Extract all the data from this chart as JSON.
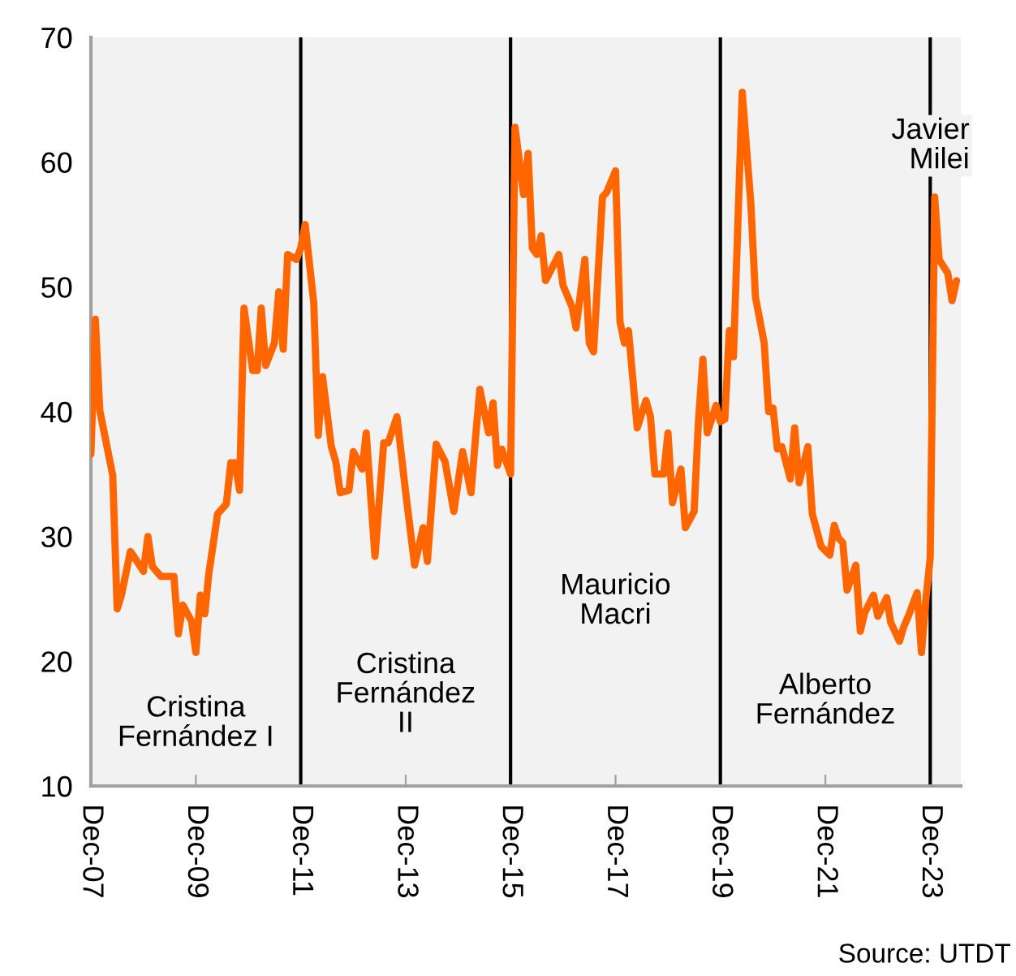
{
  "chart_data": {
    "type": "line",
    "x": [
      "2007-12",
      "2008-01",
      "2008-02",
      "2008-05",
      "2008-06",
      "2008-07",
      "2008-09",
      "2008-10",
      "2008-12",
      "2009-01",
      "2009-02",
      "2009-04",
      "2009-07",
      "2009-08",
      "2009-09",
      "2009-11",
      "2009-12",
      "2010-01",
      "2010-02",
      "2010-03",
      "2010-05",
      "2010-07",
      "2010-08",
      "2010-09",
      "2010-10",
      "2010-11",
      "2011-01",
      "2011-02",
      "2011-03",
      "2011-04",
      "2011-06",
      "2011-07",
      "2011-08",
      "2011-09",
      "2011-11",
      "2011-12",
      "2012-01",
      "2012-03",
      "2012-04",
      "2012-05",
      "2012-07",
      "2012-08",
      "2012-09",
      "2012-11",
      "2012-12",
      "2013-02",
      "2013-03",
      "2013-05",
      "2013-07",
      "2013-08",
      "2013-10",
      "2013-12",
      "2014-02",
      "2014-04",
      "2014-05",
      "2014-07",
      "2014-09",
      "2014-11",
      "2015-01",
      "2015-03",
      "2015-04",
      "2015-05",
      "2015-07",
      "2015-08",
      "2015-09",
      "2015-10",
      "2015-12",
      "2016-01",
      "2016-03",
      "2016-04",
      "2016-05",
      "2016-06",
      "2016-07",
      "2016-08",
      "2016-11",
      "2016-12",
      "2017-02",
      "2017-03",
      "2017-05",
      "2017-06",
      "2017-07",
      "2017-09",
      "2017-10",
      "2017-12",
      "2018-01",
      "2018-02",
      "2018-03",
      "2018-05",
      "2018-07",
      "2018-08",
      "2018-09",
      "2018-11",
      "2018-12",
      "2019-01",
      "2019-03",
      "2019-04",
      "2019-06",
      "2019-07",
      "2019-08",
      "2019-09",
      "2019-11",
      "2019-12",
      "2020-01",
      "2020-02",
      "2020-03",
      "2020-05",
      "2020-07",
      "2020-08",
      "2020-10",
      "2020-11",
      "2020-12",
      "2021-01",
      "2021-02",
      "2021-04",
      "2021-05",
      "2021-06",
      "2021-08",
      "2021-09",
      "2021-11",
      "2022-01",
      "2022-02",
      "2022-03",
      "2022-04",
      "2022-05",
      "2022-07",
      "2022-08",
      "2022-09",
      "2022-11",
      "2022-12",
      "2023-02",
      "2023-03",
      "2023-05",
      "2023-06",
      "2023-07",
      "2023-09",
      "2023-10",
      "2023-11",
      "2023-12",
      "2024-01",
      "2024-02",
      "2024-04",
      "2024-05",
      "2024-06"
    ],
    "series": [
      {
        "color": "#ff6600",
        "values": [
          36.6,
          47.4,
          40.1,
          34.9,
          24.2,
          25.3,
          28.8,
          28.3,
          27.2,
          30.0,
          27.6,
          26.8,
          26.8,
          22.2,
          24.5,
          23.2,
          20.7,
          25.3,
          23.8,
          27.0,
          31.8,
          32.6,
          35.9,
          35.9,
          33.7,
          48.3,
          43.3,
          43.3,
          48.3,
          43.7,
          45.5,
          49.6,
          45.0,
          52.6,
          52.2,
          53.1,
          55.0,
          48.7,
          38.1,
          42.8,
          37.2,
          36.0,
          33.5,
          33.7,
          36.8,
          35.4,
          38.3,
          28.4,
          37.5,
          37.5,
          39.6,
          33.5,
          27.7,
          30.7,
          28.0,
          37.4,
          36.0,
          32.0,
          36.8,
          33.5,
          37.9,
          41.8,
          38.3,
          40.7,
          35.7,
          37.0,
          35.0,
          62.8,
          57.4,
          60.7,
          53.1,
          52.6,
          54.1,
          50.5,
          52.6,
          50.1,
          48.4,
          46.7,
          52.2,
          45.5,
          44.8,
          57.2,
          57.6,
          59.3,
          47.2,
          45.5,
          46.5,
          38.7,
          40.9,
          39.6,
          35.0,
          35.0,
          38.3,
          32.7,
          35.4,
          30.7,
          32.0,
          39.2,
          44.2,
          38.3,
          40.5,
          39.2,
          39.4,
          46.5,
          44.4,
          65.6,
          56.5,
          49.2,
          45.5,
          40.0,
          40.3,
          37.0,
          37.2,
          34.6,
          38.7,
          34.3,
          37.2,
          31.8,
          29.2,
          28.5,
          30.9,
          29.9,
          29.5,
          25.7,
          27.7,
          22.4,
          23.9,
          25.3,
          23.6,
          25.1,
          23.1,
          21.6,
          22.8,
          23.6,
          25.5,
          20.7,
          25.0,
          28.3,
          57.2,
          52.2,
          51.1,
          48.9,
          50.5
        ]
      }
    ],
    "xlim": [
      "2007-12",
      "2024-07"
    ],
    "xticks": [
      {
        "value": "2007-12",
        "label": "Dec-07"
      },
      {
        "value": "2009-12",
        "label": "Dec-09"
      },
      {
        "value": "2011-12",
        "label": "Dec-11"
      },
      {
        "value": "2013-12",
        "label": "Dec-13"
      },
      {
        "value": "2015-12",
        "label": "Dec-15"
      },
      {
        "value": "2017-12",
        "label": "Dec-17"
      },
      {
        "value": "2019-12",
        "label": "Dec-19"
      },
      {
        "value": "2021-12",
        "label": "Dec-21"
      },
      {
        "value": "2023-12",
        "label": "Dec-23"
      }
    ],
    "ylim": [
      10,
      70
    ],
    "yticks": [
      10,
      20,
      30,
      40,
      50,
      60,
      70
    ],
    "ref_lines": [
      {
        "axis": "x",
        "value": "2011-12",
        "color": "#000000"
      },
      {
        "axis": "x",
        "value": "2015-12",
        "color": "#000000"
      },
      {
        "axis": "x",
        "value": "2019-12",
        "color": "#000000"
      },
      {
        "axis": "x",
        "value": "2023-12",
        "color": "#000000"
      }
    ],
    "annotations": [
      "Cristina\nFernández I",
      "Cristina\nFernández\nII",
      "Mauricio\nMacri",
      "Alberto\nFernández",
      "Javier\nMilei",
      "Source: UTDT"
    ],
    "grid": false,
    "marker": "none",
    "line_style": "solid"
  }
}
